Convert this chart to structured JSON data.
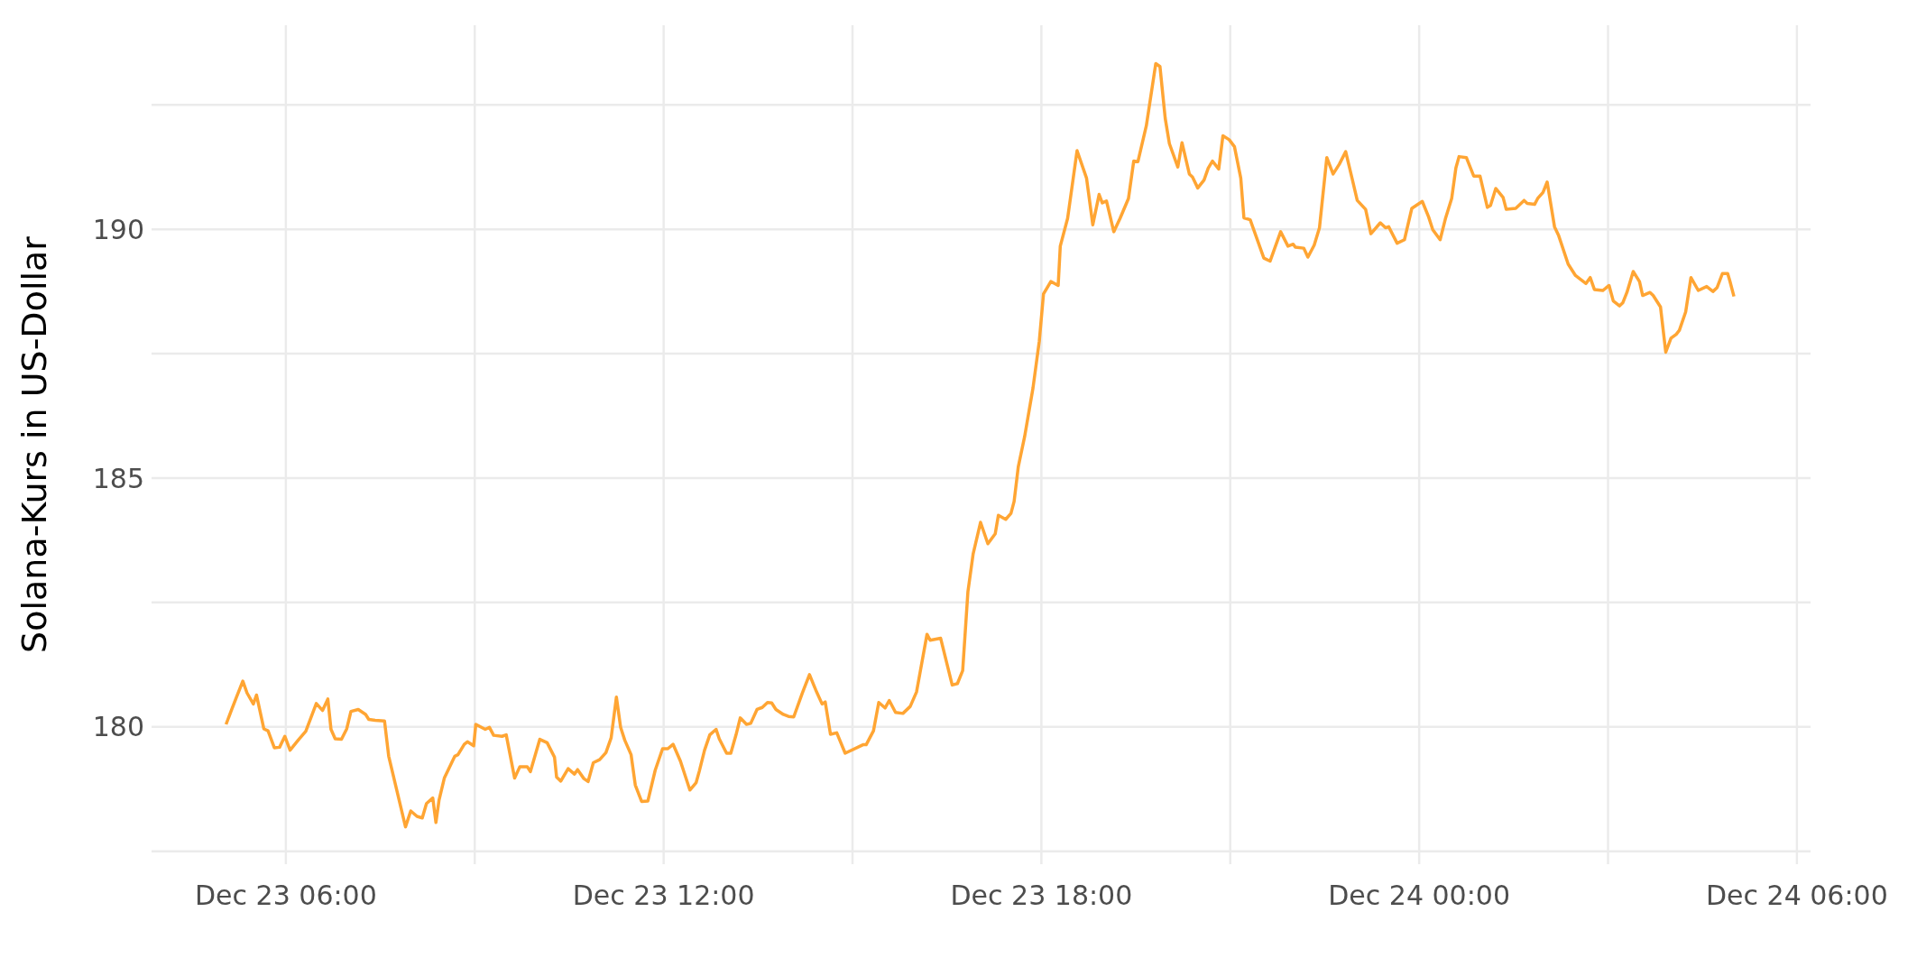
{
  "chart_data": {
    "type": "line",
    "ylabel": "Solana-Kurs in US-Dollar",
    "color": "#ffa533",
    "grid": true,
    "line_style": "solid",
    "xlim": [
      "--12-23T03:52",
      "--12-24T06:13"
    ],
    "xticks": [
      {
        "value": "--12-23T06:00",
        "label": "Dec 23 06:00"
      },
      {
        "value": "--12-23T09:00",
        "label": null
      },
      {
        "value": "--12-23T12:00",
        "label": "Dec 23 12:00"
      },
      {
        "value": "--12-23T15:00",
        "label": null
      },
      {
        "value": "--12-23T18:00",
        "label": "Dec 23 18:00"
      },
      {
        "value": "--12-23T21:00",
        "label": null
      },
      {
        "value": "--12-24T00:00",
        "label": "Dec 24 00:00"
      },
      {
        "value": "--12-24T03:00",
        "label": null
      },
      {
        "value": "--12-24T06:00",
        "label": "Dec 24 06:00"
      }
    ],
    "ylim": [
      177.24,
      194.1
    ],
    "yticks": [
      {
        "value": 177.5,
        "label": null
      },
      180,
      {
        "value": 182.5,
        "label": null
      },
      185,
      {
        "value": 187.5,
        "label": null
      },
      190,
      {
        "value": 192.5,
        "label": null
      }
    ],
    "x": [
      "--12-23T05:03",
      "--12-23T05:08",
      "--12-23T05:13",
      "--12-23T05:19",
      "--12-23T05:23",
      "--12-23T05:29",
      "--12-23T05:32",
      "--12-23T05:39",
      "--12-23T05:43",
      "--12-23T05:49",
      "--12-23T05:54",
      "--12-23T05:59",
      "--12-23T06:04",
      "--12-23T06:12",
      "--12-23T06:19",
      "--12-23T06:29",
      "--12-23T06:35",
      "--12-23T06:40",
      "--12-23T06:43",
      "--12-23T06:47",
      "--12-23T06:53",
      "--12-23T06:58",
      "--12-23T07:02",
      "--12-23T07:09",
      "--12-23T07:16",
      "--12-23T07:19",
      "--12-23T07:25",
      "--12-23T07:34",
      "--12-23T07:38",
      "--12-23T07:54",
      "--12-23T07:59",
      "--12-23T08:05",
      "--12-23T08:10",
      "--12-23T08:14",
      "--12-23T08:20",
      "--12-23T08:23",
      "--12-23T08:26",
      "--12-23T08:31",
      "--12-23T08:41",
      "--12-23T08:44",
      "--12-23T08:50",
      "--12-23T08:53",
      "--12-23T08:59",
      "--12-23T09:01",
      "--12-23T09:10",
      "--12-23T09:14",
      "--12-23T09:18",
      "--12-23T09:26",
      "--12-23T09:30",
      "--12-23T09:38",
      "--12-23T09:43",
      "--12-23T09:50",
      "--12-23T09:53",
      "--12-23T10:02",
      "--12-23T10:09",
      "--12-23T10:16",
      "--12-23T10:18",
      "--12-23T10:22",
      "--12-23T10:29",
      "--12-23T10:35",
      "--12-23T10:38",
      "--12-23T10:44",
      "--12-23T10:48",
      "--12-23T10:53",
      "--12-23T10:59",
      "--12-23T11:05",
      "--12-23T11:10",
      "--12-23T11:15",
      "--12-23T11:19",
      "--12-23T11:23",
      "--12-23T11:29",
      "--12-23T11:33",
      "--12-23T11:39",
      "--12-23T11:45",
      "--12-23T11:52",
      "--12-23T11:59",
      "--12-23T12:04",
      "--12-23T12:09",
      "--12-23T12:16",
      "--12-23T12:25",
      "--12-23T12:31",
      "--12-23T12:34",
      "--12-23T12:39",
      "--12-23T12:44",
      "--12-23T12:50",
      "--12-23T12:53",
      "--12-23T13:00",
      "--12-23T13:04",
      "--12-23T13:09",
      "--12-23T13:13",
      "--12-23T13:19",
      "--12-23T13:23",
      "--12-23T13:29",
      "--12-23T13:34",
      "--12-23T13:39",
      "--12-23T13:43",
      "--12-23T13:47",
      "--12-23T13:54",
      "--12-23T13:59",
      "--12-23T14:04",
      "--12-23T14:12",
      "--12-23T14:19",
      "--12-23T14:25",
      "--12-23T14:31",
      "--12-23T14:34",
      "--12-23T14:39",
      "--12-23T14:45",
      "--12-23T14:53",
      "--12-23T15:10",
      "--12-23T15:13",
      "--12-23T15:20",
      "--12-23T15:25",
      "--12-23T15:31",
      "--12-23T15:35",
      "--12-23T15:41",
      "--12-23T15:48",
      "--12-23T15:55",
      "--12-23T16:01",
      "--12-23T16:11",
      "--12-23T16:14",
      "--12-23T16:24",
      "--12-23T16:35",
      "--12-23T16:40",
      "--12-23T16:45",
      "--12-23T16:50",
      "--12-23T16:55",
      "--12-23T17:02",
      "--12-23T17:09",
      "--12-23T17:16",
      "--12-23T17:19",
      "--12-23T17:26",
      "--12-23T17:31",
      "--12-23T17:34",
      "--12-23T17:38",
      "--12-23T17:44",
      "--12-23T17:52",
      "--12-23T17:58",
      "--12-23T18:02",
      "--12-23T18:09",
      "--12-23T18:16",
      "--12-23T18:18",
      "--12-23T18:25",
      "--12-23T18:34",
      "--12-23T18:43",
      "--12-23T18:49",
      "--12-23T18:55",
      "--12-23T18:58",
      "--12-23T19:02",
      "--12-23T19:09",
      "--12-23T19:15",
      "--12-23T19:23",
      "--12-23T19:28",
      "--12-23T19:32",
      "--12-23T19:40",
      "--12-23T19:49",
      "--12-23T19:53",
      "--12-23T19:58",
      "--12-23T20:02",
      "--12-23T20:10",
      "--12-23T20:14",
      "--12-23T20:21",
      "--12-23T20:24",
      "--12-23T20:29",
      "--12-23T20:35",
      "--12-23T20:39",
      "--12-23T20:43",
      "--12-23T20:49",
      "--12-23T20:53",
      "--12-23T20:59",
      "--12-23T21:04",
      "--12-23T21:10",
      "--12-23T21:13",
      "--12-23T21:19",
      "--12-23T21:32",
      "--12-23T21:38",
      "--12-23T21:48",
      "--12-23T21:55",
      "--12-23T22:00",
      "--12-23T22:02",
      "--12-23T22:10",
      "--12-23T22:14",
      "--12-23T22:20",
      "--12-23T22:25",
      "--12-23T22:32",
      "--12-23T22:38",
      "--12-23T22:44",
      "--12-23T22:50",
      "--12-23T22:56",
      "--12-23T23:01",
      "--12-23T23:09",
      "--12-23T23:14",
      "--12-23T23:23",
      "--12-23T23:28",
      "--12-23T23:31",
      "--12-23T23:39",
      "--12-23T23:46",
      "--12-23T23:53",
      "--12-24T00:03",
      "--12-24T00:09",
      "--12-24T00:13",
      "--12-24T00:20",
      "--12-24T00:25",
      "--12-24T00:31",
      "--12-24T00:35",
      "--12-24T00:38",
      "--12-24T00:45",
      "--12-24T00:52",
      "--12-24T00:58",
      "--12-24T01:05",
      "--12-24T01:08",
      "--12-24T01:13",
      "--12-24T01:20",
      "--12-24T01:23",
      "--12-24T01:32",
      "--12-24T01:35",
      "--12-24T01:40",
      "--12-24T01:43",
      "--12-24T01:50",
      "--12-24T01:53",
      "--12-24T01:58",
      "--12-24T02:02",
      "--12-24T02:09",
      "--12-24T02:13",
      "--12-24T02:22",
      "--12-24T02:29",
      "--12-24T02:34",
      "--12-24T02:39",
      "--12-24T02:43",
      "--12-24T02:47",
      "--12-24T02:55",
      "--12-24T03:01",
      "--12-24T03:05",
      "--12-24T03:11",
      "--12-24T03:14",
      "--12-24T03:18",
      "--12-24T03:24",
      "--12-24T03:30",
      "--12-24T03:33",
      "--12-24T03:40",
      "--12-24T03:43",
      "--12-24T03:50",
      "--12-24T03:55",
      "--12-24T04:00",
      "--12-24T04:05",
      "--12-24T04:08",
      "--12-24T04:14",
      "--12-24T04:19",
      "--12-24T04:26",
      "--12-24T04:34",
      "--12-24T04:40",
      "--12-24T04:44",
      "--12-24T04:49",
      "--12-24T04:54",
      "--12-24T04:56",
      "--12-24T05:00"
    ],
    "values": [
      180.05,
      180.33,
      180.6,
      180.92,
      180.68,
      180.46,
      180.64,
      179.96,
      179.92,
      179.58,
      179.59,
      179.81,
      179.53,
      179.74,
      179.91,
      180.47,
      180.33,
      180.56,
      179.95,
      179.76,
      179.75,
      179.96,
      180.31,
      180.35,
      180.25,
      180.15,
      180.13,
      180.12,
      179.41,
      177.99,
      178.31,
      178.2,
      178.17,
      178.46,
      178.57,
      178.08,
      178.53,
      178.97,
      179.41,
      179.44,
      179.65,
      179.7,
      179.62,
      180.05,
      179.95,
      179.99,
      179.83,
      179.81,
      179.84,
      178.97,
      179.2,
      179.2,
      179.1,
      179.75,
      179.68,
      179.39,
      178.99,
      178.91,
      179.16,
      179.05,
      179.14,
      178.96,
      178.9,
      179.28,
      179.34,
      179.48,
      179.78,
      180.6,
      179.99,
      179.73,
      179.44,
      178.83,
      178.5,
      178.51,
      179.13,
      179.56,
      179.56,
      179.65,
      179.31,
      178.73,
      178.88,
      179.11,
      179.53,
      179.84,
      179.95,
      179.76,
      179.47,
      179.47,
      179.84,
      180.18,
      180.05,
      180.07,
      180.35,
      180.39,
      180.49,
      180.48,
      180.35,
      180.25,
      180.21,
      180.2,
      180.67,
      181.05,
      180.74,
      180.46,
      180.5,
      179.85,
      179.88,
      179.47,
      179.64,
      179.64,
      179.92,
      180.49,
      180.38,
      180.53,
      180.29,
      180.27,
      180.41,
      180.7,
      181.86,
      181.74,
      181.78,
      180.84,
      180.87,
      181.13,
      182.72,
      183.48,
      184.11,
      183.68,
      183.88,
      184.25,
      184.17,
      184.29,
      184.53,
      185.23,
      185.83,
      186.81,
      187.75,
      188.7,
      188.95,
      188.87,
      189.66,
      190.22,
      191.58,
      191.03,
      190.09,
      190.7,
      190.53,
      190.57,
      189.95,
      190.22,
      190.62,
      191.37,
      191.36,
      192.08,
      193.33,
      193.27,
      192.23,
      191.72,
      191.25,
      191.74,
      191.11,
      191.05,
      190.83,
      190.99,
      191.23,
      191.37,
      191.21,
      191.88,
      191.8,
      191.66,
      191.03,
      190.23,
      190.19,
      189.42,
      189.36,
      189.95,
      189.66,
      189.7,
      189.64,
      189.62,
      189.44,
      189.68,
      190.03,
      191.44,
      191.11,
      191.31,
      191.56,
      191.03,
      190.58,
      190.4,
      189.91,
      190.13,
      190.03,
      190.05,
      189.72,
      189.79,
      190.42,
      190.56,
      190.25,
      189.99,
      189.79,
      190.21,
      190.62,
      191.23,
      191.46,
      191.44,
      191.07,
      191.07,
      190.44,
      190.48,
      190.82,
      190.64,
      190.4,
      190.42,
      190.48,
      190.58,
      190.52,
      190.5,
      190.62,
      190.74,
      190.95,
      190.05,
      189.87,
      189.3,
      189.07,
      188.99,
      188.91,
      189.03,
      188.79,
      188.77,
      188.87,
      188.56,
      188.46,
      188.52,
      188.73,
      189.15,
      188.95,
      188.67,
      188.73,
      188.67,
      188.44,
      187.53,
      187.81,
      187.89,
      187.97,
      188.34,
      189.03,
      188.77,
      188.85,
      188.75,
      188.83,
      189.11,
      189.11,
      188.97,
      188.65
    ]
  }
}
